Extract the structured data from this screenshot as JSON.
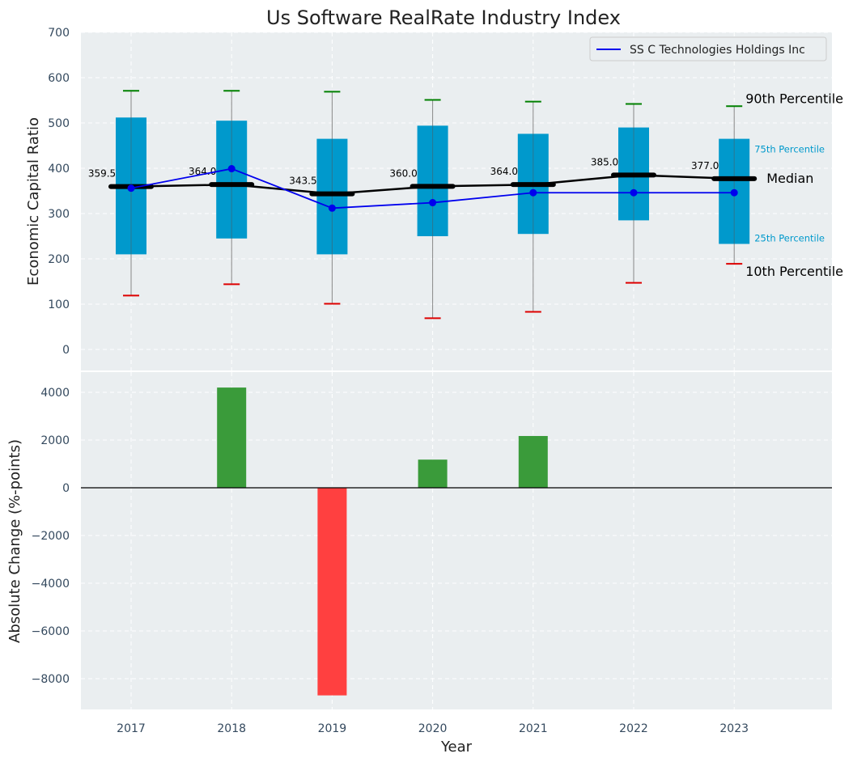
{
  "chart_data": [
    {
      "type": "box",
      "title": "Us Software RealRate Industry Index",
      "ylabel": "Economic Capital Ratio",
      "ylim": [
        -50,
        700
      ],
      "yticks": [
        0,
        100,
        200,
        300,
        400,
        500,
        600,
        700
      ],
      "grid": true,
      "legend": {
        "placement": "top-right",
        "entries": [
          "SS C Technologies Holdings Inc"
        ]
      },
      "categories": [
        "2017",
        "2018",
        "2019",
        "2020",
        "2021",
        "2022",
        "2023"
      ],
      "p10": [
        119,
        144,
        101,
        69,
        83,
        147,
        189
      ],
      "p25": [
        210,
        245,
        210,
        250,
        255,
        285,
        233
      ],
      "median": [
        359.5,
        364.0,
        343.5,
        360.0,
        364.0,
        385.0,
        377.0
      ],
      "median_labels": [
        "359.5",
        "364.0",
        "343.5",
        "360.0",
        "364.0",
        "385.0",
        "377.0"
      ],
      "p75": [
        512,
        505,
        465,
        494,
        476,
        490,
        465
      ],
      "p90": [
        571,
        571,
        569,
        551,
        547,
        542,
        537
      ],
      "company_series": {
        "name": "SS C Technologies Holdings Inc",
        "values": [
          356,
          399,
          312,
          324,
          346,
          346,
          346
        ]
      },
      "annotations": {
        "p90": "90th Percentile",
        "p75": "75th Percentile",
        "median": "Median",
        "p25": "25th Percentile",
        "p10": "10th Percentile"
      }
    },
    {
      "type": "bar",
      "ylabel": "Absolute Change (%-points)",
      "xlabel": "Year",
      "ylim": [
        -9300,
        4900
      ],
      "yticks": [
        -8000,
        -6000,
        -4000,
        -2000,
        0,
        2000,
        4000
      ],
      "ytick_labels": [
        "−8000",
        "−6000",
        "−4000",
        "−2000",
        "0",
        "2000",
        "4000"
      ],
      "grid": true,
      "categories": [
        "2017",
        "2018",
        "2019",
        "2020",
        "2021",
        "2022",
        "2023"
      ],
      "values": [
        0,
        4200,
        -8700,
        1180,
        2170,
        0,
        0
      ]
    }
  ],
  "colors": {
    "panel_bg": "#eaeef0",
    "box": "#0099cc",
    "median": "#000000",
    "company": "#0000ee",
    "p90_cap": "#008000",
    "p10_cap": "#dd0000",
    "positive": "#3a9b3a",
    "negative": "#ff4040",
    "axis_text": "#34495e"
  }
}
